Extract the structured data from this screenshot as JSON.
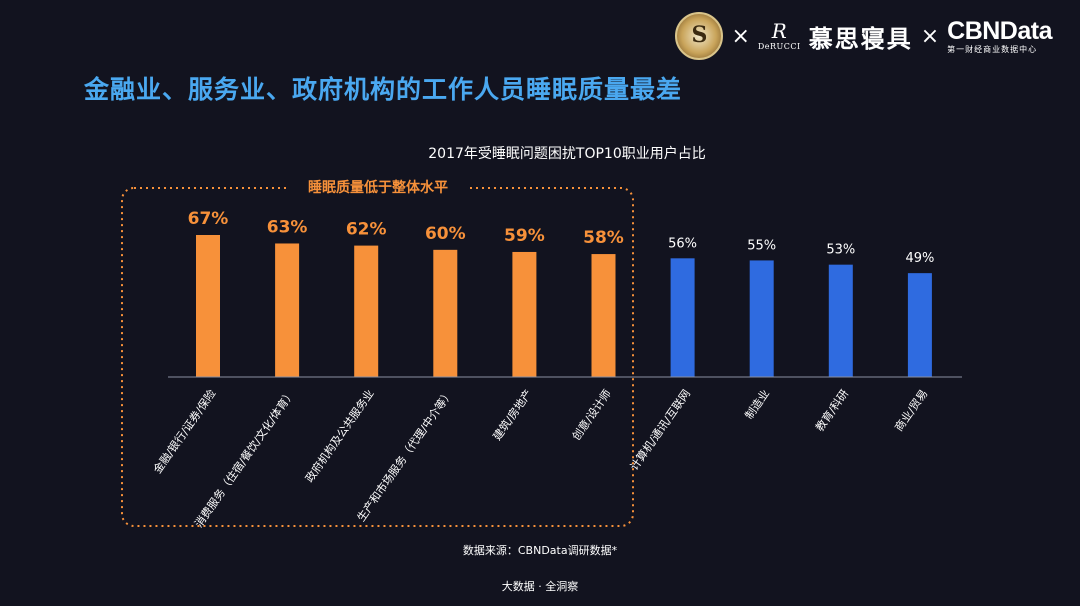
{
  "header": {
    "title": "金融业、服务业、政府机构的工作人员睡眠质量最差",
    "logos": {
      "separator": "×",
      "derucci_mark": "R",
      "derucci_text": "DeRUCCI",
      "musi": "慕思寝具",
      "cbn_main": "CBNData",
      "cbn_sub": "第一财经商业数据中心"
    }
  },
  "chart_data": {
    "type": "bar",
    "title": "2017年受睡眠问题困扰TOP10职业用户占比",
    "categories": [
      "金融/银行/证券/保险",
      "消费服务（住宿/餐饮/文化/体育）",
      "政府机构及公共服务业",
      "生产和市场服务（代理/中介等）",
      "建筑/房地产",
      "创意/设计师",
      "计算机/通讯/互联网",
      "制造业",
      "教育/科研",
      "商业/贸易"
    ],
    "values": [
      67,
      63,
      62,
      60,
      59,
      58,
      56,
      55,
      53,
      49
    ],
    "value_labels": [
      "67%",
      "63%",
      "62%",
      "60%",
      "59%",
      "58%",
      "56%",
      "55%",
      "53%",
      "49%"
    ],
    "highlight_count": 6,
    "highlight_label": "睡眠质量低于整体水平",
    "ylim": [
      0,
      100
    ],
    "xlabel": "",
    "ylabel": "",
    "colors": {
      "highlight": "#f7913a",
      "normal": "#2f6be0",
      "axis": "#8a8fa0",
      "text": "#ffffff"
    }
  },
  "source": "数据来源：CBNData调研数据*",
  "footer": "大数据 · 全洞察"
}
